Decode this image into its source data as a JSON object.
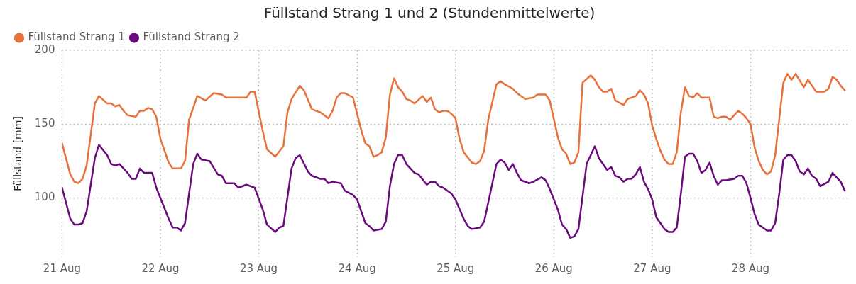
{
  "chart_data": {
    "type": "line",
    "title": "Füllstand Strang 1 und 2 (Stundenmittelwerte)",
    "ylabel": "Füllstand [mm]",
    "xlim": [
      "--08-21T00:00",
      "--08-29T00:00"
    ],
    "xticks": [
      {
        "value": "--08-21",
        "label": "21 Aug"
      },
      {
        "value": "--08-22",
        "label": "22 Aug"
      },
      {
        "value": "--08-23",
        "label": "23 Aug"
      },
      {
        "value": "--08-24",
        "label": "24 Aug"
      },
      {
        "value": "--08-25",
        "label": "25 Aug"
      },
      {
        "value": "--08-26",
        "label": "26 Aug"
      },
      {
        "value": "--08-27",
        "label": "27 Aug"
      },
      {
        "value": "--08-28",
        "label": "28 Aug"
      }
    ],
    "ylim": [
      60,
      200
    ],
    "yticks": [
      100,
      150,
      200
    ],
    "grid": true,
    "legend": "top left",
    "marker": "none",
    "line_style": "solid",
    "series": [
      {
        "name": "Füllstand Strang 1",
        "color": "#e8703a",
        "x": [
          "--08-21T00:00",
          "--08-21T02:00",
          "--08-21T03:00",
          "--08-21T04:00",
          "--08-21T05:00",
          "--08-21T06:00",
          "--08-21T08:00",
          "--08-21T09:00",
          "--08-21T11:00",
          "--08-21T12:00",
          "--08-21T13:00",
          "--08-21T14:00",
          "--08-21T15:00",
          "--08-21T16:00",
          "--08-21T18:00",
          "--08-21T19:00",
          "--08-21T20:00",
          "--08-21T21:00",
          "--08-21T22:00",
          "--08-21T23:00",
          "--08-22T00:00",
          "--08-22T02:00",
          "--08-22T03:00",
          "--08-22T05:00",
          "--08-22T06:00",
          "--08-22T07:00",
          "--08-22T09:00",
          "--08-22T11:00",
          "--08-22T13:00",
          "--08-22T15:00",
          "--08-22T16:00",
          "--08-22T18:00",
          "--08-22T21:00",
          "--08-22T22:00",
          "--08-22T23:00",
          "--08-23T01:00",
          "--08-23T02:00",
          "--08-23T04:00",
          "--08-23T06:00",
          "--08-23T07:00",
          "--08-23T08:00",
          "--08-23T10:00",
          "--08-23T11:00",
          "--08-23T13:00",
          "--08-23T15:00",
          "--08-23T17:00",
          "--08-23T18:00",
          "--08-23T19:00",
          "--08-23T20:00",
          "--08-23T21:00",
          "--08-23T23:00",
          "--08-24T01:00",
          "--08-24T02:00",
          "--08-24T03:00",
          "--08-24T04:00",
          "--08-24T05:00",
          "--08-24T06:00",
          "--08-24T07:00",
          "--08-24T08:00",
          "--08-24T09:00",
          "--08-24T10:00",
          "--08-24T11:00",
          "--08-24T12:00",
          "--08-24T13:00",
          "--08-24T14:00",
          "--08-24T16:00",
          "--08-24T17:00",
          "--08-24T18:00",
          "--08-24T19:00",
          "--08-24T20:00",
          "--08-24T21:00",
          "--08-24T22:00",
          "--08-24T23:00",
          "--08-25T00:00",
          "--08-25T01:00",
          "--08-25T02:00",
          "--08-25T04:00",
          "--08-25T05:00",
          "--08-25T06:00",
          "--08-25T07:00",
          "--08-25T08:00",
          "--08-25T10:00",
          "--08-25T11:00",
          "--08-25T12:00",
          "--08-25T14:00",
          "--08-25T15:00",
          "--08-25T17:00",
          "--08-25T19:00",
          "--08-25T20:00",
          "--08-25T22:00",
          "--08-25T23:00",
          "--08-26T01:00",
          "--08-26T02:00",
          "--08-26T03:00",
          "--08-26T04:00",
          "--08-26T05:00",
          "--08-26T06:00",
          "--08-26T07:00",
          "--08-26T09:00",
          "--08-26T10:00",
          "--08-26T11:00",
          "--08-26T12:00",
          "--08-26T13:00",
          "--08-26T14:00",
          "--08-26T15:00",
          "--08-26T17:00",
          "--08-26T18:00",
          "--08-26T20:00",
          "--08-26T21:00",
          "--08-26T22:00",
          "--08-26T23:00",
          "--08-27T00:00",
          "--08-27T01:00",
          "--08-27T02:00",
          "--08-27T03:00",
          "--08-27T04:00",
          "--08-27T05:00",
          "--08-27T06:00",
          "--08-27T07:00",
          "--08-27T08:00",
          "--08-27T09:00",
          "--08-27T10:00",
          "--08-27T11:00",
          "--08-27T12:00",
          "--08-27T14:00",
          "--08-27T15:00",
          "--08-27T16:00",
          "--08-27T17:00",
          "--08-27T18:00",
          "--08-27T19:00",
          "--08-27T21:00",
          "--08-27T22:00",
          "--08-27T23:00",
          "--08-28T00:00",
          "--08-28T01:00",
          "--08-28T02:00",
          "--08-28T03:00",
          "--08-28T04:00",
          "--08-28T05:00",
          "--08-28T06:00",
          "--08-28T08:00",
          "--08-28T09:00",
          "--08-28T10:00",
          "--08-28T11:00",
          "--08-28T13:00",
          "--08-28T14:00",
          "--08-28T16:00",
          "--08-28T18:00",
          "--08-28T19:00",
          "--08-28T20:00",
          "--08-28T21:00",
          "--08-28T22:00",
          "--08-28T23:00"
        ],
        "values": [
          137,
          116,
          111,
          110,
          113,
          122,
          164,
          169,
          164,
          164,
          162,
          163,
          159,
          156,
          155,
          159,
          159,
          161,
          160,
          155,
          140,
          124,
          120,
          120,
          125,
          153,
          169,
          166,
          171,
          170,
          168,
          168,
          168,
          172,
          172,
          145,
          133,
          128,
          135,
          158,
          167,
          176,
          173,
          160,
          158,
          154,
          159,
          168,
          171,
          171,
          168,
          146,
          137,
          135,
          128,
          129,
          131,
          141,
          170,
          181,
          175,
          172,
          167,
          166,
          164,
          169,
          165,
          168,
          160,
          158,
          159,
          159,
          157,
          154,
          140,
          131,
          124,
          123,
          125,
          132,
          153,
          177,
          179,
          177,
          174,
          171,
          167,
          168,
          170,
          170,
          166,
          141,
          133,
          130,
          123,
          124,
          131,
          178,
          183,
          180,
          175,
          172,
          172,
          174,
          166,
          163,
          167,
          169,
          173,
          170,
          164,
          149,
          140,
          132,
          126,
          123,
          123,
          131,
          158,
          175,
          169,
          168,
          171,
          168,
          168,
          155,
          154,
          155,
          155,
          153,
          159,
          157,
          154,
          150,
          134,
          125,
          119,
          116,
          118,
          129,
          178,
          184,
          180,
          184,
          175,
          180,
          172,
          172,
          174,
          182,
          180,
          176,
          173
        ]
      },
      {
        "name": "Füllstand Strang 2",
        "color": "#6b0a7d",
        "x": [
          "--08-21T00:00",
          "--08-21T02:00",
          "--08-21T03:00",
          "--08-21T04:00",
          "--08-21T05:00",
          "--08-21T06:00",
          "--08-21T08:00",
          "--08-21T09:00",
          "--08-21T11:00",
          "--08-21T12:00",
          "--08-21T13:00",
          "--08-21T14:00",
          "--08-21T15:00",
          "--08-21T16:00",
          "--08-21T17:00",
          "--08-21T18:00",
          "--08-21T19:00",
          "--08-21T20:00",
          "--08-21T22:00",
          "--08-21T23:00",
          "--08-22T02:00",
          "--08-22T03:00",
          "--08-22T04:00",
          "--08-22T05:00",
          "--08-22T06:00",
          "--08-22T08:00",
          "--08-22T09:00",
          "--08-22T10:00",
          "--08-22T12:00",
          "--08-22T14:00",
          "--08-22T15:00",
          "--08-22T16:00",
          "--08-22T18:00",
          "--08-22T19:00",
          "--08-22T21:00",
          "--08-22T23:00",
          "--08-23T01:00",
          "--08-23T02:00",
          "--08-23T04:00",
          "--08-23T05:00",
          "--08-23T06:00",
          "--08-23T08:00",
          "--08-23T09:00",
          "--08-23T10:00",
          "--08-23T12:00",
          "--08-23T13:00",
          "--08-23T15:00",
          "--08-23T16:00",
          "--08-23T17:00",
          "--08-23T18:00",
          "--08-23T20:00",
          "--08-23T21:00",
          "--08-23T23:00",
          "--08-24T00:00",
          "--08-24T01:00",
          "--08-24T02:00",
          "--08-24T03:00",
          "--08-24T04:00",
          "--08-24T06:00",
          "--08-24T07:00",
          "--08-24T08:00",
          "--08-24T09:00",
          "--08-24T10:00",
          "--08-24T11:00",
          "--08-24T12:00",
          "--08-24T13:00",
          "--08-24T14:00",
          "--08-24T15:00",
          "--08-24T17:00",
          "--08-24T18:00",
          "--08-24T19:00",
          "--08-24T20:00",
          "--08-24T21:00",
          "--08-24T23:00",
          "--08-25T00:00",
          "--08-25T02:00",
          "--08-25T03:00",
          "--08-25T04:00",
          "--08-25T06:00",
          "--08-25T07:00",
          "--08-25T09:00",
          "--08-25T10:00",
          "--08-25T11:00",
          "--08-25T12:00",
          "--08-25T13:00",
          "--08-25T14:00",
          "--08-25T15:00",
          "--08-25T16:00",
          "--08-25T18:00",
          "--08-25T19:00",
          "--08-25T21:00",
          "--08-25T22:00",
          "--08-25T23:00",
          "--08-26T01:00",
          "--08-26T02:00",
          "--08-26T03:00",
          "--08-26T04:00",
          "--08-26T05:00",
          "--08-26T06:00",
          "--08-26T08:00",
          "--08-26T10:00",
          "--08-26T11:00",
          "--08-26T13:00",
          "--08-26T14:00",
          "--08-26T15:00",
          "--08-26T16:00",
          "--08-26T17:00",
          "--08-26T18:00",
          "--08-26T19:00",
          "--08-26T20:00",
          "--08-26T21:00",
          "--08-26T22:00",
          "--08-26T23:00",
          "--08-27T00:00",
          "--08-27T01:00",
          "--08-27T02:00",
          "--08-27T03:00",
          "--08-27T04:00",
          "--08-27T05:00",
          "--08-27T06:00",
          "--08-27T07:00",
          "--08-27T08:00",
          "--08-27T09:00",
          "--08-27T10:00",
          "--08-27T11:00",
          "--08-27T12:00",
          "--08-27T13:00",
          "--08-27T14:00",
          "--08-27T15:00",
          "--08-27T16:00",
          "--08-27T17:00",
          "--08-27T18:00",
          "--08-27T20:00",
          "--08-27T21:00",
          "--08-27T22:00",
          "--08-27T23:00",
          "--08-28T00:00",
          "--08-28T01:00",
          "--08-28T02:00",
          "--08-28T03:00",
          "--08-28T04:00",
          "--08-28T05:00",
          "--08-28T06:00",
          "--08-28T07:00",
          "--08-28T08:00",
          "--08-28T09:00",
          "--08-28T10:00",
          "--08-28T11:00",
          "--08-28T12:00",
          "--08-28T13:00",
          "--08-28T14:00",
          "--08-28T15:00",
          "--08-28T16:00",
          "--08-28T17:00",
          "--08-28T19:00",
          "--08-28T20:00",
          "--08-28T21:00",
          "--08-28T22:00",
          "--08-28T23:00"
        ],
        "values": [
          107,
          86,
          82,
          82,
          83,
          91,
          127,
          136,
          129,
          123,
          122,
          123,
          120,
          117,
          113,
          113,
          120,
          117,
          117,
          107,
          86,
          80,
          80,
          78,
          83,
          123,
          130,
          126,
          125,
          116,
          115,
          110,
          110,
          107,
          109,
          107,
          92,
          82,
          77,
          80,
          81,
          120,
          127,
          129,
          118,
          115,
          113,
          113,
          110,
          111,
          110,
          105,
          102,
          99,
          91,
          83,
          81,
          78,
          79,
          84,
          108,
          123,
          129,
          129,
          123,
          120,
          117,
          116,
          109,
          111,
          111,
          108,
          107,
          103,
          99,
          86,
          81,
          79,
          80,
          84,
          110,
          123,
          126,
          124,
          119,
          123,
          117,
          112,
          110,
          111,
          114,
          112,
          106,
          92,
          82,
          79,
          73,
          74,
          79,
          123,
          135,
          127,
          119,
          121,
          115,
          114,
          111,
          113,
          113,
          116,
          121,
          111,
          106,
          99,
          87,
          83,
          79,
          77,
          77,
          80,
          103,
          128,
          130,
          130,
          125,
          117,
          119,
          124,
          115,
          109,
          112,
          112,
          113,
          115,
          115,
          110,
          100,
          89,
          82,
          80,
          78,
          78,
          83,
          103,
          126,
          129,
          129,
          125,
          118,
          116,
          120,
          115,
          113,
          108,
          111,
          117,
          114,
          111,
          105
        ]
      }
    ]
  }
}
